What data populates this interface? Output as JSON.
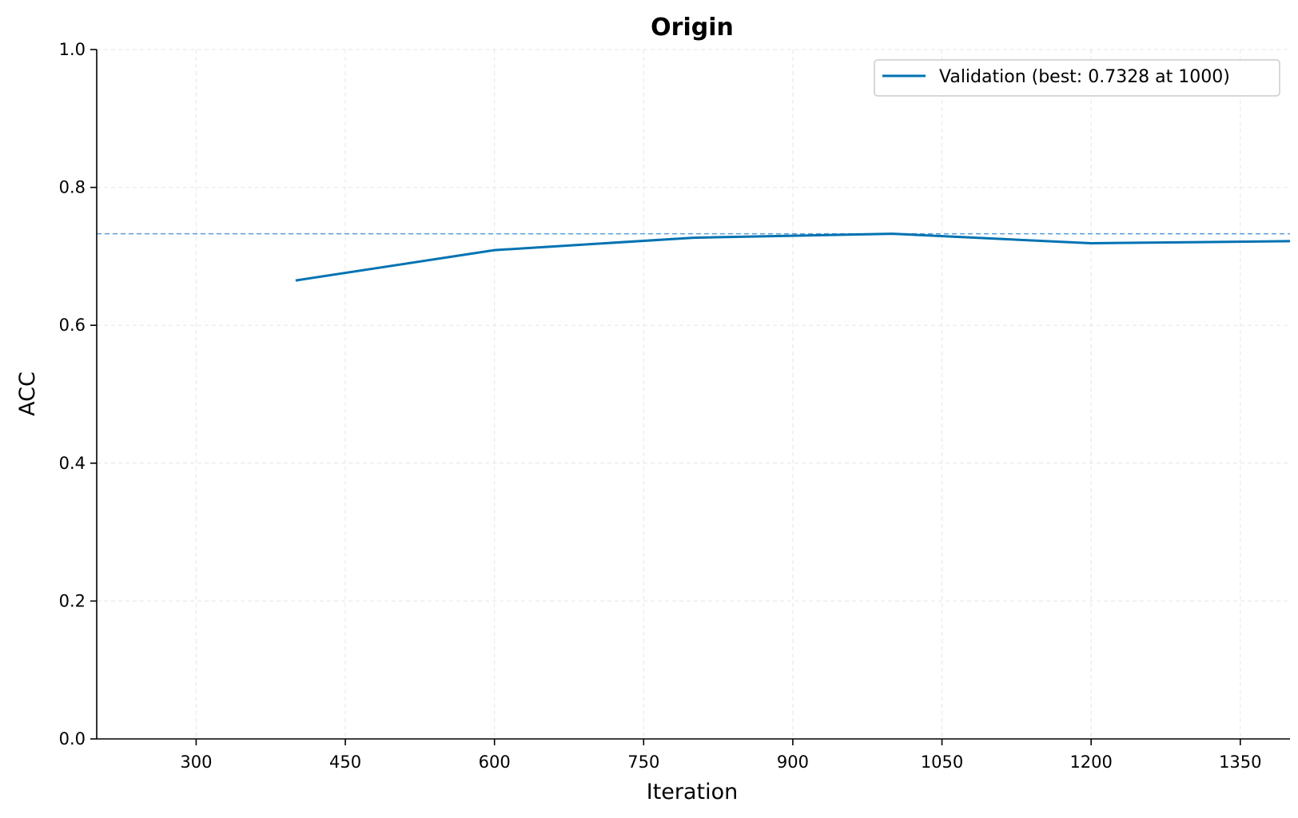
{
  "chart_data": {
    "type": "line",
    "title": "Origin",
    "xlabel": "Iteration",
    "ylabel": "ACC",
    "xlim": [
      200,
      1400
    ],
    "ylim": [
      0.0,
      1.0
    ],
    "xticks": [
      300,
      450,
      600,
      750,
      900,
      1050,
      1200,
      1350
    ],
    "yticks": [
      0.0,
      0.2,
      0.4,
      0.6,
      0.8,
      1.0
    ],
    "xtick_labels": [
      "300",
      "450",
      "600",
      "750",
      "900",
      "1050",
      "1200",
      "1350"
    ],
    "ytick_labels": [
      "0.0",
      "0.2",
      "0.4",
      "0.6",
      "0.8",
      "1.0"
    ],
    "grid": true,
    "legend_position": "top-right",
    "series": [
      {
        "name": "Validation (best: 0.7328 at 1000)",
        "color": "#0072b2",
        "x": [
          400,
          600,
          800,
          1000,
          1200,
          1400
        ],
        "y": [
          0.665,
          0.709,
          0.727,
          0.7328,
          0.719,
          0.722
        ]
      }
    ],
    "reference_lines": [
      {
        "axis": "y",
        "value": 0.7328,
        "style": "dashed",
        "color": "#5b9bd5"
      }
    ]
  }
}
